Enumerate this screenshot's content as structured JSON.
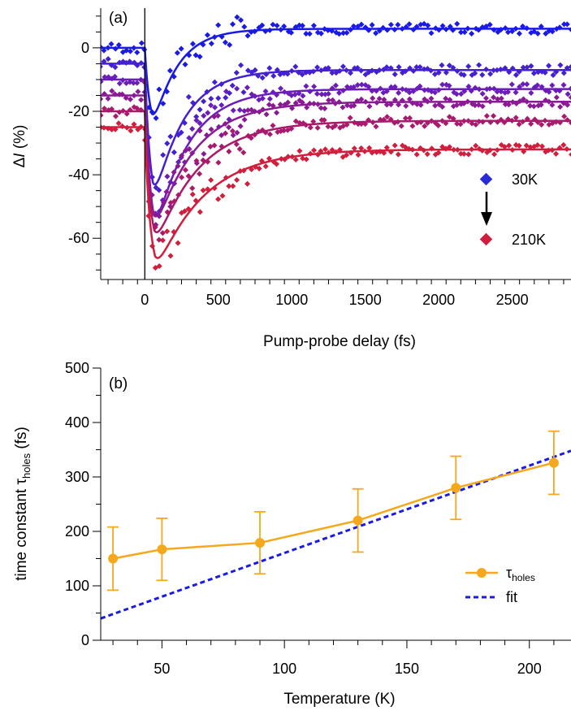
{
  "chart_data": [
    {
      "panel_label": "(a)",
      "type": "line",
      "xlabel": "Pump-probe delay (fs)",
      "ylabel_prefix": "Δ",
      "ylabel_var": "I",
      "ylabel_suffix": " (%)",
      "xlim": [
        -300,
        2900
      ],
      "ylim": [
        -73,
        12
      ],
      "x_ticks": [
        0,
        500,
        1000,
        1500,
        2000,
        2500
      ],
      "y_ticks": [
        0,
        -20,
        -40,
        -60
      ],
      "vertical_line_at": 0,
      "legend": {
        "placement": "right",
        "from_label": "30K",
        "to_label": "210K",
        "from_color": "#2a2ad6",
        "to_color": "#d01e3c"
      },
      "series": [
        {
          "offset": 0,
          "depth": 21,
          "final": 6,
          "t_rise": 35,
          "t_min": 50,
          "t_rec": 160,
          "color": "#1a1ae6"
        },
        {
          "offset": -5,
          "depth": 38,
          "final": -7,
          "t_rise": 35,
          "t_min": 55,
          "t_rec": 200,
          "color": "#4420d2"
        },
        {
          "offset": -10,
          "depth": 43,
          "final": -13,
          "t_rise": 35,
          "t_min": 60,
          "t_rec": 230,
          "color": "#6a1db8"
        },
        {
          "offset": -15,
          "depth": 38,
          "final": -17,
          "t_rise": 35,
          "t_min": 60,
          "t_rec": 270,
          "color": "#8a1a94"
        },
        {
          "offset": -20,
          "depth": 38,
          "final": -23,
          "t_rise": 35,
          "t_min": 65,
          "t_rec": 300,
          "color": "#aa1a6c"
        },
        {
          "offset": -25,
          "depth": 41,
          "final": -32,
          "t_rise": 35,
          "t_min": 70,
          "t_rec": 340,
          "color": "#d01e3c"
        }
      ]
    },
    {
      "panel_label": "(b)",
      "type": "line",
      "xlabel": "Temperature (K)",
      "ylabel_main": "time constant τ",
      "ylabel_sub": "holes",
      "ylabel_suffix": " (fs)",
      "xlim": [
        25,
        217
      ],
      "ylim": [
        0,
        500
      ],
      "x_ticks": [
        50,
        100,
        150,
        200
      ],
      "y_ticks": [
        0,
        100,
        200,
        300,
        400,
        500
      ],
      "series": [
        {
          "name_main": "τ",
          "name_sub": "holes",
          "color": "#f5a81c",
          "x": [
            30,
            50,
            90,
            130,
            170,
            210
          ],
          "y": [
            150,
            167,
            179,
            220,
            280,
            326
          ],
          "err": [
            58,
            57,
            57,
            58,
            58,
            58
          ]
        },
        {
          "name": "fit",
          "color": "#1a1ae6",
          "style": "dashed",
          "x": [
            25,
            217
          ],
          "y": [
            40,
            348
          ]
        }
      ]
    }
  ]
}
